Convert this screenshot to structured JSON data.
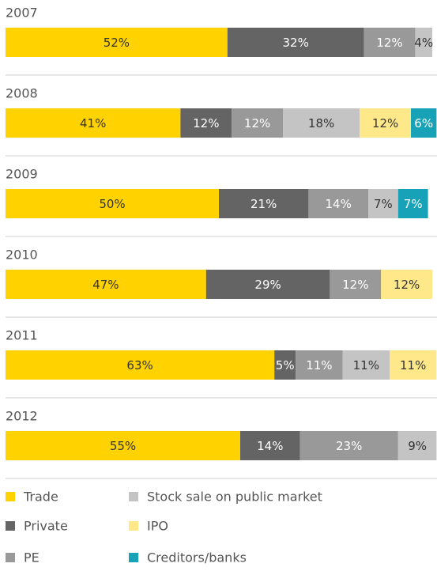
{
  "chart_data": {
    "type": "bar",
    "orientation": "horizontal",
    "stacked": true,
    "categories": [
      "2007",
      "2008",
      "2009",
      "2010",
      "2011",
      "2012"
    ],
    "series": [
      {
        "name": "Trade",
        "color": "#ffd200",
        "label_color": "#333333",
        "values": [
          52,
          41,
          50,
          47,
          63,
          55
        ],
        "value_labels": [
          "52%",
          "41%",
          "50%",
          "47%",
          "63%",
          "55%"
        ]
      },
      {
        "name": "Private",
        "color": "#646464",
        "label_color": "#ffffff",
        "values": [
          32,
          12,
          21,
          29,
          5,
          14
        ],
        "value_labels": [
          "32%",
          "12%",
          "21%",
          "29%",
          "5%",
          "14%"
        ]
      },
      {
        "name": "PE",
        "color": "#999999",
        "label_color": "#ffffff",
        "values": [
          12,
          12,
          14,
          12,
          11,
          23
        ],
        "value_labels": [
          "12%",
          "12%",
          "14%",
          "12%",
          "11%",
          "23%"
        ]
      },
      {
        "name": "Stock sale on public market",
        "color": "#c4c4c4",
        "label_color": "#333333",
        "values": [
          4,
          18,
          7,
          null,
          11,
          9
        ],
        "value_labels": [
          "4%",
          "18%",
          "7%",
          null,
          "11%",
          "9%"
        ]
      },
      {
        "name": "IPO",
        "color": "#ffe88a",
        "label_color": "#333333",
        "values": [
          null,
          12,
          null,
          12,
          11,
          null
        ],
        "value_labels": [
          null,
          "12%",
          null,
          "12%",
          "11%",
          null
        ]
      },
      {
        "name": "Creditors/banks",
        "color": "#17a2b8",
        "label_color": "#ffffff",
        "values": [
          null,
          6,
          7,
          null,
          null,
          null
        ],
        "value_labels": [
          null,
          "6%",
          "7%",
          null,
          null,
          null
        ]
      }
    ]
  }
}
